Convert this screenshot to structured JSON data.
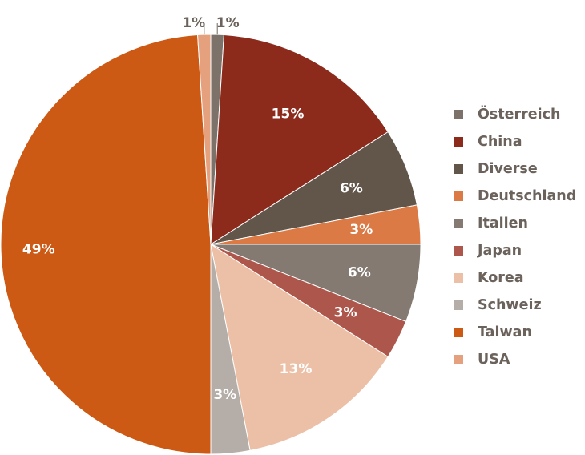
{
  "chart_data": {
    "type": "pie",
    "title": "",
    "start_angle_deg": 0,
    "direction": "clockwise",
    "legend_position": "right",
    "slices": [
      {
        "name": "Österreich",
        "value": 1,
        "label": "1%",
        "color": "#7d726a",
        "label_color": "#6b625c",
        "outside": true
      },
      {
        "name": "China",
        "value": 15,
        "label": "15%",
        "color": "#8c2a1c",
        "label_color": "#ffffff",
        "outside": false
      },
      {
        "name": "Diverse",
        "value": 6,
        "label": "6%",
        "color": "#62564b",
        "label_color": "#ffffff",
        "outside": false
      },
      {
        "name": "Deutschland",
        "value": 3,
        "label": "3%",
        "color": "#db7a45",
        "label_color": "#ffffff",
        "outside": false
      },
      {
        "name": "Italien",
        "value": 6,
        "label": "6%",
        "color": "#847a72",
        "label_color": "#ffffff",
        "outside": false
      },
      {
        "name": "Japan",
        "value": 3,
        "label": "3%",
        "color": "#ad574c",
        "label_color": "#ffffff",
        "outside": false
      },
      {
        "name": "Korea",
        "value": 13,
        "label": "13%",
        "color": "#ecc0a6",
        "label_color": "#ffffff",
        "outside": false
      },
      {
        "name": "Schweiz",
        "value": 3,
        "label": "3%",
        "color": "#b5ada7",
        "label_color": "#ffffff",
        "outside": false
      },
      {
        "name": "Taiwan",
        "value": 49,
        "label": "49%",
        "color": "#cd5a14",
        "label_color": "#ffffff",
        "outside": false
      },
      {
        "name": "USA",
        "value": 1,
        "label": "1%",
        "color": "#e5a07d",
        "label_color": "#6b625c",
        "outside": true
      }
    ]
  }
}
